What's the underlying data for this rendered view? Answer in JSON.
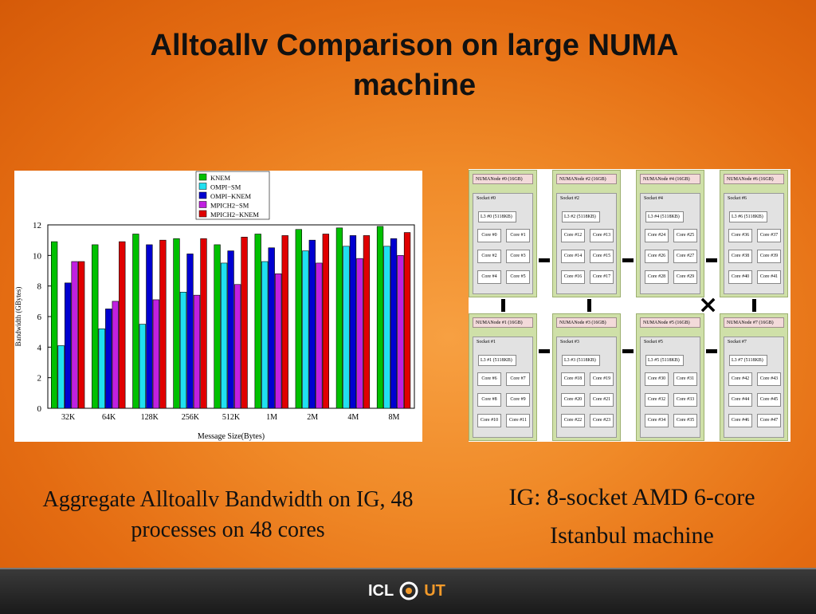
{
  "slide": {
    "title_line1": "Alltoallv Comparison on large NUMA",
    "title_line2": "machine",
    "caption_left_line1": "Aggregate Alltoallv Bandwidth on IG, 48",
    "caption_left_line2": "processes on 48 cores",
    "caption_right_line1": "IG: 8-socket AMD 6-core",
    "caption_right_line2": "Istanbul machine",
    "logo_left": "ICL",
    "logo_right": "UT"
  },
  "chart_data": {
    "type": "bar",
    "title": "",
    "xlabel": "Message Size(Bytes)",
    "ylabel": "Bandwidth (GBytes)",
    "ylim": [
      0,
      12
    ],
    "yticks": [
      0,
      2,
      4,
      6,
      8,
      10,
      12
    ],
    "legend_position": "top-center",
    "grid": false,
    "categories": [
      "32K",
      "64K",
      "128K",
      "256K",
      "512K",
      "1M",
      "2M",
      "4M",
      "8M"
    ],
    "series": [
      {
        "name": "KNEM",
        "color": "#00c000",
        "values": [
          10.9,
          10.7,
          11.4,
          11.1,
          10.7,
          11.4,
          11.7,
          11.8,
          11.9
        ]
      },
      {
        "name": "OMPI−SM",
        "color": "#20e0f0",
        "values": [
          4.1,
          5.2,
          5.5,
          7.6,
          9.5,
          9.6,
          10.3,
          10.6,
          10.6
        ]
      },
      {
        "name": "OMPI−KNEM",
        "color": "#0000d0",
        "values": [
          8.2,
          6.5,
          10.7,
          10.1,
          10.3,
          10.5,
          11.0,
          11.3,
          11.1
        ]
      },
      {
        "name": "MPICH2−SM",
        "color": "#c020e0",
        "values": [
          9.6,
          7.0,
          7.1,
          7.4,
          8.1,
          8.8,
          9.5,
          9.8,
          10.0
        ]
      },
      {
        "name": "MPICH2−KNEM",
        "color": "#e00000",
        "values": [
          9.6,
          10.9,
          11.0,
          11.1,
          11.2,
          11.3,
          11.4,
          11.3,
          11.5
        ]
      }
    ]
  },
  "diagram": {
    "nodes": [
      {
        "node": "NUMANode #0 (16GB)",
        "socket": "Socket #0",
        "l3": "L3 #0 (5118KB)",
        "cores": [
          "Core #0",
          "Core #1",
          "Core #2",
          "Core #3",
          "Core #4",
          "Core #5"
        ]
      },
      {
        "node": "NUMANode #2 (16GB)",
        "socket": "Socket #2",
        "l3": "L3 #2 (5118KB)",
        "cores": [
          "Core #12",
          "Core #13",
          "Core #14",
          "Core #15",
          "Core #16",
          "Core #17"
        ]
      },
      {
        "node": "NUMANode #4 (16GB)",
        "socket": "Socket #4",
        "l3": "L3 #4 (5118KB)",
        "cores": [
          "Core #24",
          "Core #25",
          "Core #26",
          "Core #27",
          "Core #28",
          "Core #29"
        ]
      },
      {
        "node": "NUMANode #6 (16GB)",
        "socket": "Socket #6",
        "l3": "L3 #6 (5118KB)",
        "cores": [
          "Core #36",
          "Core #37",
          "Core #38",
          "Core #39",
          "Core #40",
          "Core #41"
        ]
      },
      {
        "node": "NUMANode #1 (16GB)",
        "socket": "Socket #1",
        "l3": "L3 #1 (5118KB)",
        "cores": [
          "Core #6",
          "Core #7",
          "Core #8",
          "Core #9",
          "Core #10",
          "Core #11"
        ]
      },
      {
        "node": "NUMANode #3 (16GB)",
        "socket": "Socket #3",
        "l3": "L3 #3 (5118KB)",
        "cores": [
          "Core #18",
          "Core #19",
          "Core #20",
          "Core #21",
          "Core #22",
          "Core #23"
        ]
      },
      {
        "node": "NUMANode #5 (16GB)",
        "socket": "Socket #5",
        "l3": "L3 #5 (5118KB)",
        "cores": [
          "Core #30",
          "Core #31",
          "Core #32",
          "Core #33",
          "Core #34",
          "Core #35"
        ]
      },
      {
        "node": "NUMANode #7 (16GB)",
        "socket": "Socket #7",
        "l3": "L3 #7 (5118KB)",
        "cores": [
          "Core #42",
          "Core #43",
          "Core #44",
          "Core #45",
          "Core #46",
          "Core #47"
        ]
      }
    ]
  }
}
